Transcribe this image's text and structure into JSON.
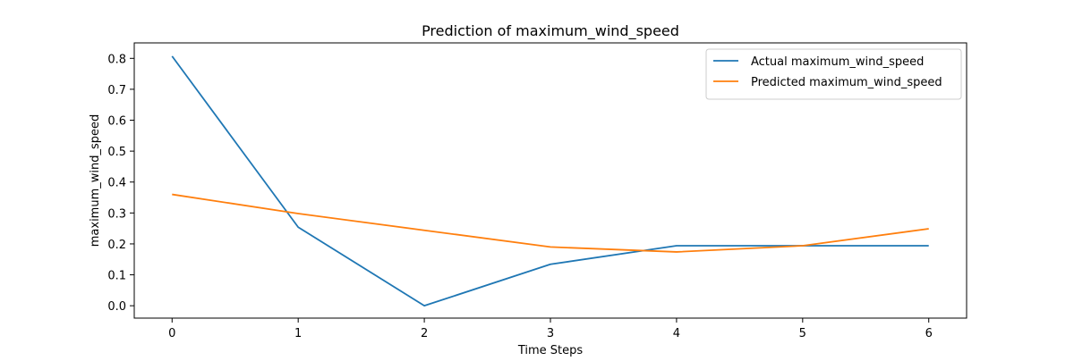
{
  "chart_data": {
    "type": "line",
    "title": "Prediction of maximum_wind_speed",
    "xlabel": "Time Steps",
    "ylabel": "maximum_wind_speed",
    "x": [
      0,
      1,
      2,
      3,
      4,
      5,
      6
    ],
    "x_ticks": [
      "0",
      "1",
      "2",
      "3",
      "4",
      "5",
      "6"
    ],
    "y_ticks": [
      "0.0",
      "0.1",
      "0.2",
      "0.3",
      "0.4",
      "0.5",
      "0.6",
      "0.7",
      "0.8"
    ],
    "xlim": [
      -0.3,
      6.3
    ],
    "ylim": [
      -0.04,
      0.85
    ],
    "grid": false,
    "legend_position": "top-right",
    "series": [
      {
        "name": "Actual maximum_wind_speed",
        "color": "#1f77b4",
        "values": [
          0.807,
          0.254,
          0.0,
          0.134,
          0.194,
          0.194,
          0.194
        ]
      },
      {
        "name": "Predicted maximum_wind_speed",
        "color": "#ff7f0e",
        "values": [
          0.36,
          0.298,
          0.244,
          0.19,
          0.174,
          0.194,
          0.249
        ]
      }
    ]
  }
}
